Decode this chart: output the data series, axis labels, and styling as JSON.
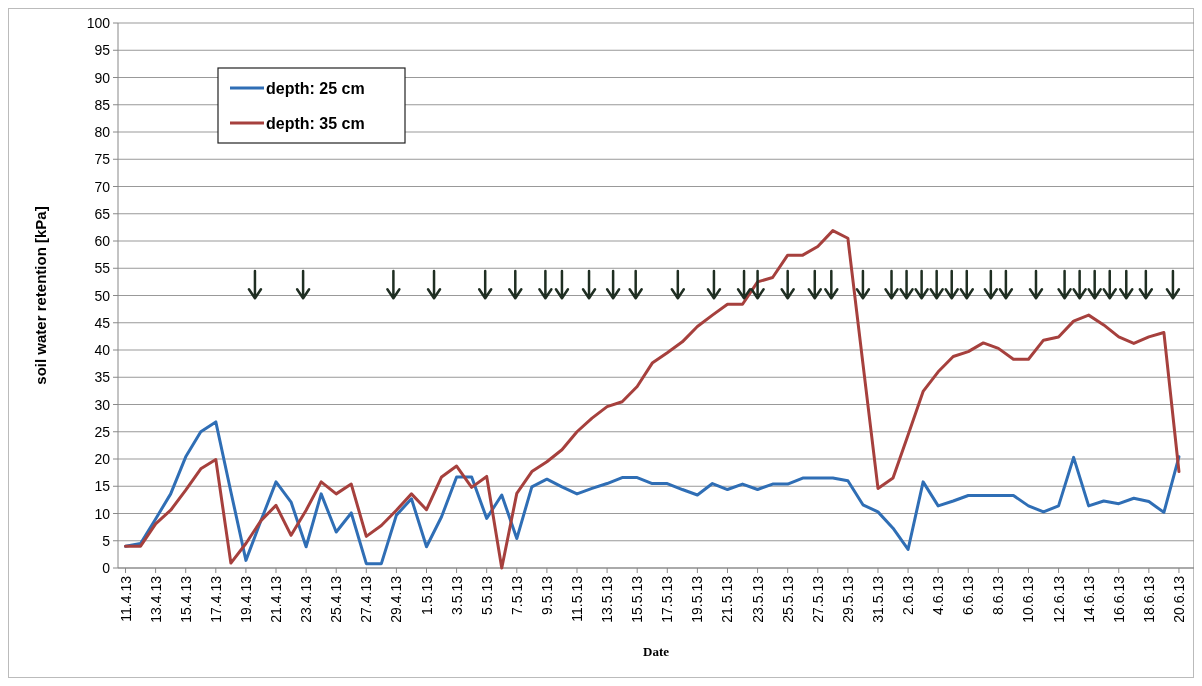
{
  "chart_data": {
    "type": "line",
    "xlabel": "Date",
    "ylabel": "soil water retention [kPa]",
    "x": [
      "--04-11",
      "--04-12",
      "--04-13",
      "--04-14",
      "--04-15",
      "--04-16",
      "--04-17",
      "--04-18",
      "--04-19",
      "--04-20",
      "--04-21",
      "--04-22",
      "--04-23",
      "--04-24",
      "--04-25",
      "--04-26",
      "--04-27",
      "--04-28",
      "--04-29",
      "--04-30",
      "--05-01",
      "--05-02",
      "--05-03",
      "--05-04",
      "--05-05",
      "--05-06",
      "--05-07",
      "--05-08",
      "--05-09",
      "--05-10",
      "--05-11",
      "--05-12",
      "--05-13",
      "--05-14",
      "--05-15",
      "--05-16",
      "--05-17",
      "--05-18",
      "--05-19",
      "--05-20",
      "--05-21",
      "--05-22",
      "--05-23",
      "--05-24",
      "--05-25",
      "--05-26",
      "--05-27",
      "--05-28",
      "--05-29",
      "--05-30",
      "--05-31",
      "--06-01",
      "--06-02",
      "--06-03",
      "--06-04",
      "--06-05",
      "--06-06",
      "--06-07",
      "--06-08",
      "--06-09",
      "--06-10",
      "--06-11",
      "--06-12",
      "--06-13",
      "--06-14",
      "--06-15",
      "--06-16",
      "--06-17",
      "--06-18",
      "--06-19",
      "--06-20"
    ],
    "series": [
      {
        "name": "depth: 25 cm",
        "color": "#2f6eb5",
        "values": [
          4,
          4.5,
          9,
          13.6,
          20.4,
          25,
          26.8,
          14,
          1.4,
          8.7,
          15.8,
          12.1,
          3.9,
          13.6,
          6.6,
          10.1,
          0.8,
          0.8,
          9.7,
          12.7,
          3.9,
          9.4,
          16.7,
          16.7,
          9.1,
          13.4,
          5.4,
          14.9,
          16.3,
          14.9,
          13.6,
          14.6,
          15.5,
          16.6,
          16.6,
          15.5,
          15.5,
          14.4,
          13.4,
          15.5,
          14.4,
          15.4,
          14.4,
          15.4,
          15.4,
          16.5,
          16.5,
          16.5,
          16,
          11.6,
          10.3,
          7.3,
          3.4,
          15.8,
          11.4,
          12.3,
          13.3,
          13.3,
          13.3,
          13.3,
          11.4,
          10.3,
          11.4,
          20.3,
          11.4,
          12.3,
          11.8,
          12.8,
          12.2,
          10.2,
          20.4
        ]
      },
      {
        "name": "depth: 35 cm",
        "color": "#a6403d",
        "values": [
          4,
          4,
          8.1,
          10.6,
          14.3,
          18.2,
          19.9,
          0.9,
          4.5,
          8.7,
          11.5,
          6,
          10.6,
          15.8,
          13.6,
          15.4,
          5.8,
          7.8,
          10.6,
          13.6,
          10.7,
          16.7,
          18.7,
          14.8,
          16.8,
          0,
          13.7,
          17.7,
          19.5,
          21.7,
          25,
          27.5,
          29.6,
          30.5,
          33.3,
          37.6,
          39.5,
          41.5,
          44.3,
          46.4,
          48.4,
          48.4,
          52.5,
          53.3,
          57.4,
          57.4,
          59,
          61.9,
          60.5,
          37.5,
          14.6,
          16.5,
          24.4,
          32.4,
          36,
          38.8,
          39.7,
          41.3,
          40.3,
          38.3,
          38.3,
          41.8,
          42.4,
          45.3,
          46.4,
          44.6,
          42.4,
          41.2,
          42.4,
          43.2,
          17.7
        ]
      }
    ],
    "xlim": [
      "--04-10T12:00",
      "--06-21T00:00"
    ],
    "xticks": [
      {
        "value": "--04-11",
        "label": "11.4.13"
      },
      {
        "value": "--04-13",
        "label": "13.4.13"
      },
      {
        "value": "--04-15",
        "label": "15.4.13"
      },
      {
        "value": "--04-17",
        "label": "17.4.13"
      },
      {
        "value": "--04-19",
        "label": "19.4.13"
      },
      {
        "value": "--04-21",
        "label": "21.4.13"
      },
      {
        "value": "--04-23",
        "label": "23.4.13"
      },
      {
        "value": "--04-25",
        "label": "25.4.13"
      },
      {
        "value": "--04-27",
        "label": "27.4.13"
      },
      {
        "value": "--04-29",
        "label": "29.4.13"
      },
      {
        "value": "--05-01",
        "label": "1.5.13"
      },
      {
        "value": "--05-03",
        "label": "3.5.13"
      },
      {
        "value": "--05-05",
        "label": "5.5.13"
      },
      {
        "value": "--05-07",
        "label": "7.5.13"
      },
      {
        "value": "--05-09",
        "label": "9.5.13"
      },
      {
        "value": "--05-11",
        "label": "11.5.13"
      },
      {
        "value": "--05-13",
        "label": "13.5.13"
      },
      {
        "value": "--05-15",
        "label": "15.5.13"
      },
      {
        "value": "--05-17",
        "label": "17.5.13"
      },
      {
        "value": "--05-19",
        "label": "19.5.13"
      },
      {
        "value": "--05-21",
        "label": "21.5.13"
      },
      {
        "value": "--05-23",
        "label": "23.5.13"
      },
      {
        "value": "--05-25",
        "label": "25.5.13"
      },
      {
        "value": "--05-27",
        "label": "27.5.13"
      },
      {
        "value": "--05-29",
        "label": "29.5.13"
      },
      {
        "value": "--05-31",
        "label": "31.5.13"
      },
      {
        "value": "--06-02",
        "label": "2.6.13"
      },
      {
        "value": "--06-04",
        "label": "4.6.13"
      },
      {
        "value": "--06-06",
        "label": "6.6.13"
      },
      {
        "value": "--06-08",
        "label": "8.6.13"
      },
      {
        "value": "--06-10",
        "label": "10.6.13"
      },
      {
        "value": "--06-12",
        "label": "12.6.13"
      },
      {
        "value": "--06-14",
        "label": "14.6.13"
      },
      {
        "value": "--06-16",
        "label": "16.6.13"
      },
      {
        "value": "--06-18",
        "label": "18.6.13"
      },
      {
        "value": "--06-20",
        "label": "20.6.13"
      }
    ],
    "ylim": [
      0,
      100
    ],
    "yticks": [
      0,
      5,
      10,
      15,
      20,
      25,
      30,
      35,
      40,
      45,
      50,
      55,
      60,
      65,
      70,
      75,
      80,
      85,
      90,
      95,
      100
    ],
    "grid": "y",
    "legend": "top left"
  }
}
